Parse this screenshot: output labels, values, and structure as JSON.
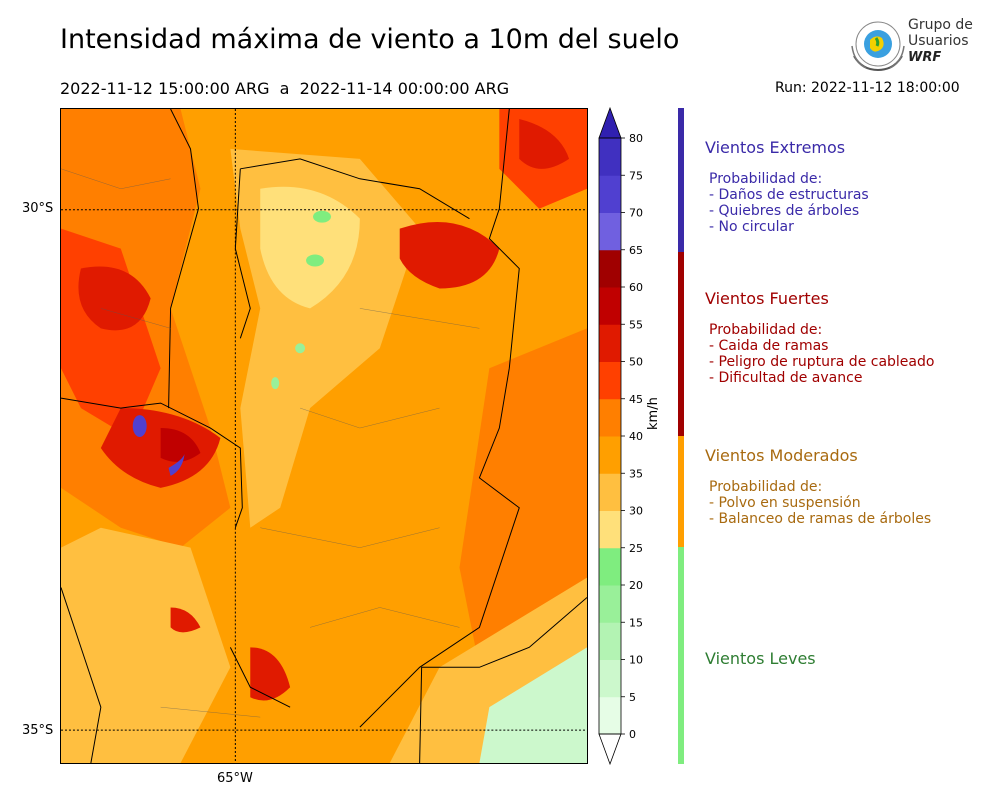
{
  "header": {
    "title": "Intensidad máxima de viento a 10m del suelo",
    "period": "2022-11-12 15:00:00 ARG  a  2022-11-14 00:00:00 ARG",
    "run": "Run: 2022-11-12 18:00:00"
  },
  "logo": {
    "line1": "Grupo de",
    "line2": "Usuarios",
    "line3": "WRF"
  },
  "map": {
    "lat_labels": [
      "30°S",
      "35°S"
    ],
    "lon_labels": [
      "65°W"
    ]
  },
  "colorbar": {
    "unit": "km/h",
    "ticks": [
      0,
      5,
      10,
      15,
      20,
      25,
      30,
      35,
      40,
      45,
      50,
      55,
      60,
      65,
      70,
      75,
      80
    ],
    "colors": [
      "#e6fde6",
      "#ccf8cc",
      "#b3f3b3",
      "#99f099",
      "#7fed7f",
      "#ffe07a",
      "#ffbf40",
      "#ff9f00",
      "#ff7f00",
      "#ff4000",
      "#e01a00",
      "#c00000",
      "#a00000",
      "#7060e0",
      "#5040d0",
      "#4030c0"
    ],
    "over_color": "#3020b0",
    "under_color": "#ffffff"
  },
  "categories": [
    {
      "title": "Vientos Extremos",
      "color": "#3a2aa8",
      "text_color": "#3a2aa8",
      "subtitle": "Probabilidad de:",
      "items": [
        "- Daños de estructuras",
        "- Quiebres de árboles",
        "- No circular"
      ]
    },
    {
      "title": "Vientos Fuertes",
      "color": "#a00000",
      "text_color": "#a00000",
      "subtitle": "Probabilidad de:",
      "items": [
        "- Caida de ramas",
        "- Peligro de ruptura de cableado",
        "- Dificultad de avance"
      ]
    },
    {
      "title": "Vientos Moderados",
      "color": "#ff9f00",
      "text_color": "#a86a10",
      "subtitle": "Probabilidad de:",
      "items": [
        "- Polvo en suspensión",
        "- Balanceo de ramas de árboles"
      ]
    },
    {
      "title": "Vientos Leves",
      "color": "#7fed7f",
      "text_color": "#2e7d32",
      "subtitle": "",
      "items": []
    }
  ]
}
